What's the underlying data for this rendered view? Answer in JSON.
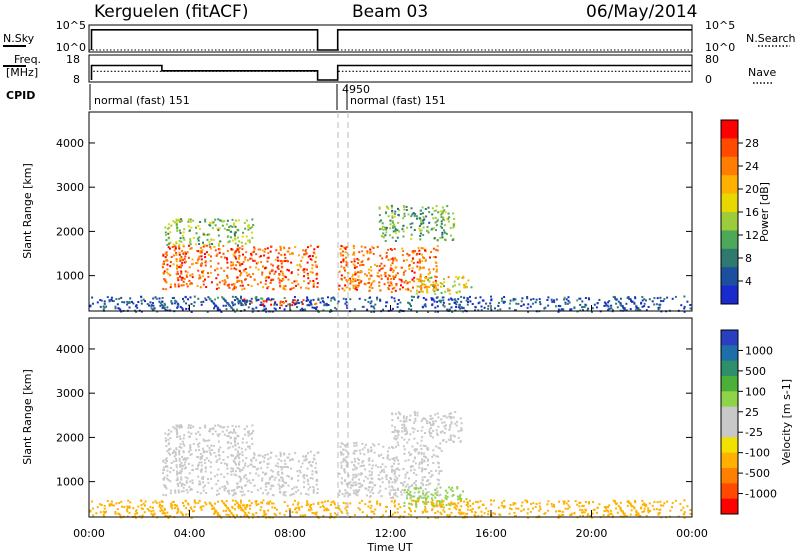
{
  "header": {
    "station": "Kerguelen (fitACF)",
    "beam": "Beam 03",
    "date": "06/May/2014"
  },
  "panels": {
    "nsky_label": "N.Sky",
    "nsearch_label": "N.Search",
    "nsky_ticks": [
      "10^5",
      "10^0"
    ],
    "nsearch_ticks": [
      "10^5",
      "10^0"
    ],
    "freq_label_top": "Freq.",
    "freq_label_bottom": "[MHz]",
    "freq_ticks": [
      "18",
      "8"
    ],
    "nave_label": "Nave",
    "nave_ticks": [
      "80",
      "0"
    ],
    "cpid_label": "CPID",
    "cpid_text_1": "normal (fast) 151",
    "cpid_text_2": "normal (fast) 151",
    "cpid_code": "4950"
  },
  "axes": {
    "ylabel": "Slant Range [km]",
    "yticks": [
      "4000",
      "3000",
      "2000",
      "1000"
    ],
    "xlabel": "Time UT",
    "xticks": [
      "00:00",
      "04:00",
      "08:00",
      "12:00",
      "16:00",
      "20:00",
      "00:00"
    ]
  },
  "colorbars": {
    "power": {
      "label": "Power [dB]",
      "ticks": [
        "28",
        "24",
        "20",
        "16",
        "12",
        "8",
        "4"
      ],
      "colors": [
        "#ff0000",
        "#ff4a00",
        "#ff7d00",
        "#ffb000",
        "#e8d800",
        "#9ccc3a",
        "#4ea85a",
        "#2f7a6e",
        "#1c4fa0",
        "#1a2acc"
      ]
    },
    "velocity": {
      "label": "Velocity [m s-1]",
      "ticks": [
        "1000",
        "500",
        "100",
        "25",
        "-25",
        "-100",
        "-500",
        "-1000"
      ],
      "colors": [
        "#2a3fc0",
        "#1e6fa8",
        "#2f8f6a",
        "#4caf3a",
        "#8ed44a",
        "#c8c8c8",
        "#c8c8c8",
        "#f2e000",
        "#ffb000",
        "#ff8000",
        "#ff4a00",
        "#ff0000"
      ]
    }
  },
  "chart_data": [
    {
      "type": "line",
      "title": "N.Sky / N.Search",
      "x_unit": "hours UT",
      "xlim": [
        0,
        24
      ],
      "series": [
        {
          "name": "N.Sky",
          "x": [
            0.1,
            0.1,
            9.1,
            9.1,
            9.9,
            9.9,
            24
          ],
          "y": [
            0,
            4.4,
            4.4,
            0,
            0,
            4.4,
            4.4
          ]
        },
        {
          "name": "N.Search",
          "x": [
            0,
            24
          ],
          "y": [
            0,
            0
          ]
        }
      ]
    },
    {
      "type": "line",
      "title": "Freq. / Nave",
      "x_unit": "hours UT",
      "xlim": [
        0,
        24
      ],
      "ylim": [
        8,
        18
      ],
      "series": [
        {
          "name": "Freq",
          "x": [
            0.1,
            0.1,
            2.9,
            2.9,
            9.1,
            9.1,
            9.9,
            9.9,
            16.9,
            16.9,
            24
          ],
          "y": [
            8,
            14.3,
            14.3,
            12.0,
            12.0,
            8,
            8,
            14.3,
            14.3,
            14.3,
            14.3
          ]
        },
        {
          "name": "Nave",
          "x": [
            0.1,
            0.1,
            2.9,
            2.9,
            9.1,
            9.1,
            9.9,
            9.9,
            16.9,
            16.9,
            24
          ],
          "y": [
            8,
            11.8,
            11.8,
            11.8,
            11.8,
            8,
            8,
            11.8,
            11.8,
            11.8,
            11.8
          ]
        }
      ]
    },
    {
      "type": "heatmap",
      "title": "Power [dB]",
      "x_unit": "hours UT",
      "xlim": [
        0,
        24
      ],
      "ylim": [
        200,
        4700
      ],
      "blobs": [
        {
          "x0": 2.9,
          "x1": 9.1,
          "y0": 700,
          "y1": 1700,
          "value": 26
        },
        {
          "x0": 3.0,
          "x1": 6.5,
          "y0": 1700,
          "y1": 2300,
          "value": 14
        },
        {
          "x0": 6.0,
          "x1": 9.1,
          "y0": 350,
          "y1": 500,
          "value": 27
        },
        {
          "x0": 9.9,
          "x1": 13.9,
          "y0": 650,
          "y1": 1700,
          "value": 25
        },
        {
          "x0": 11.5,
          "x1": 14.5,
          "y0": 1800,
          "y1": 2600,
          "value": 12
        },
        {
          "x0": 13.0,
          "x1": 15.2,
          "y0": 600,
          "y1": 1000,
          "value": 18
        },
        {
          "x0": 0.0,
          "x1": 24.0,
          "y0": 200,
          "y1": 550,
          "value": 6
        }
      ]
    },
    {
      "type": "heatmap",
      "title": "Velocity [m s-1]",
      "x_unit": "hours UT",
      "xlim": [
        0,
        24
      ],
      "ylim": [
        200,
        4700
      ],
      "blobs": [
        {
          "x0": 2.9,
          "x1": 9.1,
          "y0": 700,
          "y1": 1700,
          "value": 0
        },
        {
          "x0": 3.0,
          "x1": 6.5,
          "y0": 1700,
          "y1": 2300,
          "value": 0
        },
        {
          "x0": 9.9,
          "x1": 14.0,
          "y0": 650,
          "y1": 1900,
          "value": 0
        },
        {
          "x0": 12.0,
          "x1": 14.8,
          "y0": 1900,
          "y1": 2600,
          "value": 0
        },
        {
          "x0": 12.5,
          "x1": 15.0,
          "y0": 450,
          "y1": 900,
          "value": 60
        },
        {
          "x0": 0.0,
          "x1": 24.0,
          "y0": 200,
          "y1": 600,
          "value": -60
        }
      ]
    }
  ]
}
